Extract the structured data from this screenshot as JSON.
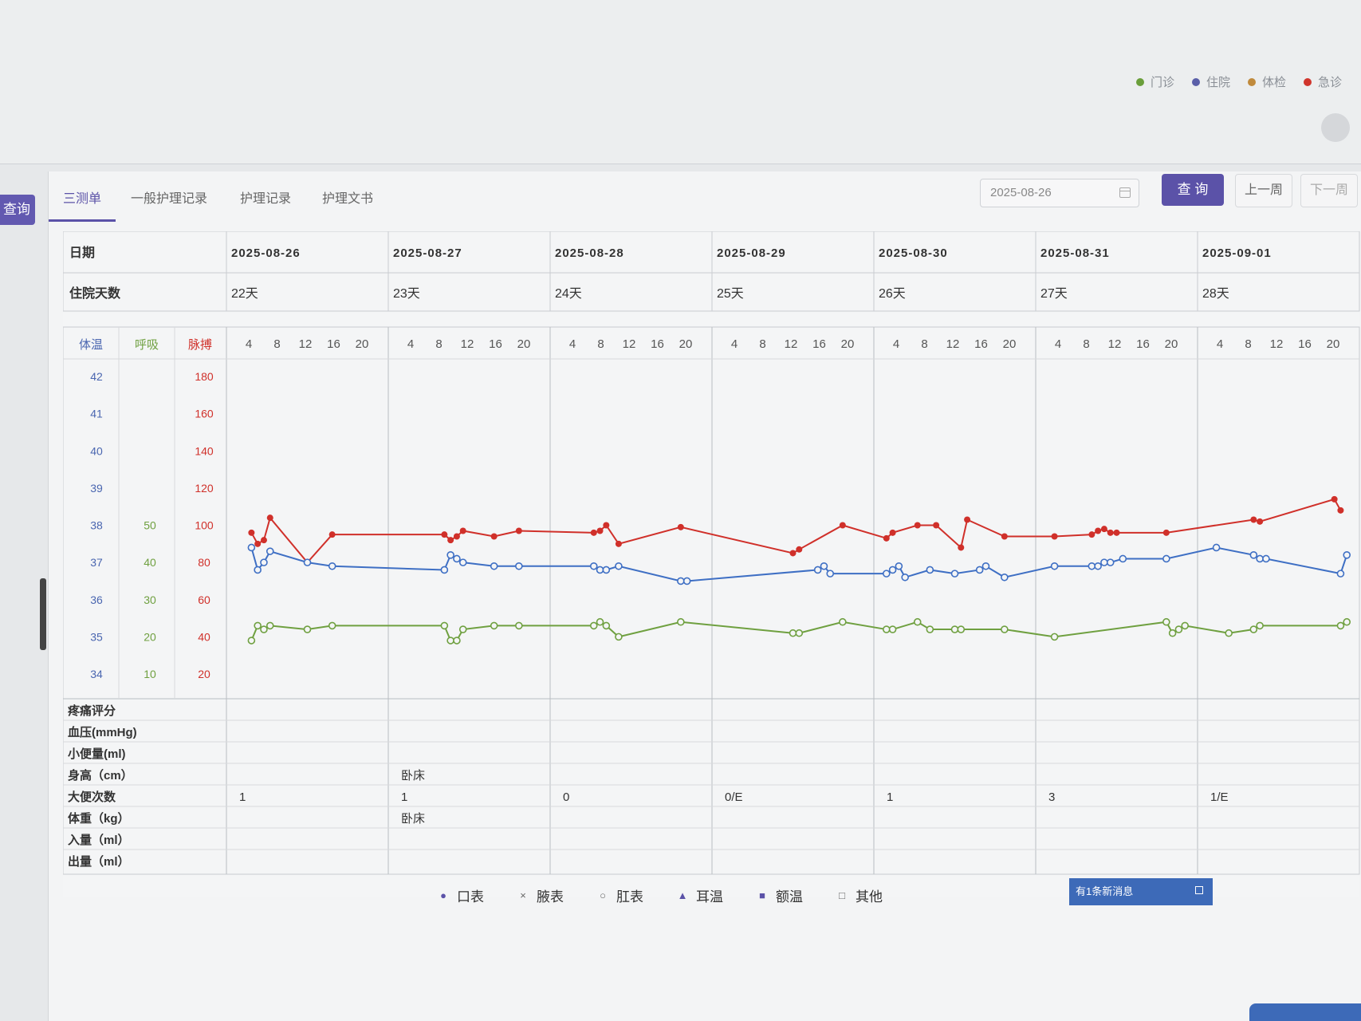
{
  "visit_legend": [
    {
      "label": "门诊",
      "color": "#6a9e3a"
    },
    {
      "label": "住院",
      "color": "#5a5fa8"
    },
    {
      "label": "体检",
      "color": "#c08a3c"
    },
    {
      "label": "急诊",
      "color": "#d0352c"
    }
  ],
  "side": {
    "query_label": "查询"
  },
  "tabs": [
    "三测单",
    "一般护理记录",
    "护理记录",
    "护理文书"
  ],
  "toolbar": {
    "date_value": "2025-08-26",
    "query_label": "查 询",
    "prev_label": "上一周",
    "next_label": "下一周"
  },
  "header": {
    "date_label": "日期",
    "days_label": "住院天数",
    "dates": [
      "2025-08-26",
      "2025-08-27",
      "2025-08-28",
      "2025-08-29",
      "2025-08-30",
      "2025-08-31",
      "2025-09-01"
    ],
    "days": [
      "22天",
      "23天",
      "24天",
      "25天",
      "26天",
      "27天",
      "28天"
    ]
  },
  "axes": {
    "temp_label": "体温",
    "resp_label": "呼吸",
    "pulse_label": "脉搏",
    "hours": [
      "4",
      "8",
      "12",
      "16",
      "20"
    ],
    "temp_ticks": [
      "42",
      "41",
      "40",
      "39",
      "38",
      "37",
      "36",
      "35",
      "34"
    ],
    "resp_ticks": [
      "",
      "",
      "",
      "",
      "50",
      "40",
      "30",
      "20",
      "10"
    ],
    "pulse_ticks": [
      "180",
      "160",
      "140",
      "120",
      "100",
      "80",
      "60",
      "40",
      "20"
    ]
  },
  "chart_data": {
    "type": "line",
    "x_unit": "date + hour",
    "temp_range": [
      34,
      42
    ],
    "pulse_range": [
      20,
      180
    ],
    "resp_range": [
      10,
      50
    ],
    "series": [
      {
        "key": "pulse",
        "color": "#d0302a",
        "marker": "filled-circle",
        "axis": "pulse",
        "points": [
          [
            "2025-08-26 3:00",
            96
          ],
          [
            "2025-08-26 4:00",
            90
          ],
          [
            "2025-08-26 5:00",
            92
          ],
          [
            "2025-08-26 6:00",
            104
          ],
          [
            "2025-08-26 12:00",
            80
          ],
          [
            "2025-08-26 16:00",
            95
          ],
          [
            "2025-08-27 8:00",
            95
          ],
          [
            "2025-08-27 9:00",
            92
          ],
          [
            "2025-08-27 10:00",
            94
          ],
          [
            "2025-08-27 11:00",
            97
          ],
          [
            "2025-08-27 16:00",
            94
          ],
          [
            "2025-08-27 20:00",
            97
          ],
          [
            "2025-08-28 6:00",
            96
          ],
          [
            "2025-08-28 7:00",
            97
          ],
          [
            "2025-08-28 8:00",
            100
          ],
          [
            "2025-08-28 10:00",
            90
          ],
          [
            "2025-08-28 20:00",
            99
          ],
          [
            "2025-08-29 12:00",
            85
          ],
          [
            "2025-08-29 13:00",
            87
          ],
          [
            "2025-08-29 20:00",
            100
          ],
          [
            "2025-08-30 1:00",
            93
          ],
          [
            "2025-08-30 2:00",
            96
          ],
          [
            "2025-08-30 6:00",
            100
          ],
          [
            "2025-08-30 9:00",
            100
          ],
          [
            "2025-08-30 13:00",
            88
          ],
          [
            "2025-08-30 14:00",
            103
          ],
          [
            "2025-08-30 20:00",
            94
          ],
          [
            "2025-08-31 2:00",
            94
          ],
          [
            "2025-08-31 8:00",
            95
          ],
          [
            "2025-08-31 9:00",
            97
          ],
          [
            "2025-08-31 10:00",
            98
          ],
          [
            "2025-08-31 11:00",
            96
          ],
          [
            "2025-08-31 12:00",
            96
          ],
          [
            "2025-08-31 20:00",
            96
          ],
          [
            "2025-09-01 8:00",
            103
          ],
          [
            "2025-09-01 9:00",
            102
          ],
          [
            "2025-09-01 21:00",
            114
          ],
          [
            "2025-09-01 22:00",
            108
          ]
        ]
      },
      {
        "key": "temperature",
        "color": "#3e6fc4",
        "marker": "open-circle",
        "axis": "temp",
        "points": [
          [
            "2025-08-26 3:00",
            37.4
          ],
          [
            "2025-08-26 4:00",
            36.8
          ],
          [
            "2025-08-26 5:00",
            37.0
          ],
          [
            "2025-08-26 6:00",
            37.3
          ],
          [
            "2025-08-26 12:00",
            37.0
          ],
          [
            "2025-08-26 16:00",
            36.9
          ],
          [
            "2025-08-27 8:00",
            36.8
          ],
          [
            "2025-08-27 9:00",
            37.2
          ],
          [
            "2025-08-27 10:00",
            37.1
          ],
          [
            "2025-08-27 11:00",
            37.0
          ],
          [
            "2025-08-27 16:00",
            36.9
          ],
          [
            "2025-08-27 20:00",
            36.9
          ],
          [
            "2025-08-28 6:00",
            36.9
          ],
          [
            "2025-08-28 7:00",
            36.8
          ],
          [
            "2025-08-28 8:00",
            36.8
          ],
          [
            "2025-08-28 10:00",
            36.9
          ],
          [
            "2025-08-28 20:00",
            36.5
          ],
          [
            "2025-08-28 21:00",
            36.5
          ],
          [
            "2025-08-29 16:00",
            36.8
          ],
          [
            "2025-08-29 17:00",
            36.9
          ],
          [
            "2025-08-29 18:00",
            36.7
          ],
          [
            "2025-08-30 1:00",
            36.7
          ],
          [
            "2025-08-30 2:00",
            36.8
          ],
          [
            "2025-08-30 3:00",
            36.9
          ],
          [
            "2025-08-30 4:00",
            36.6
          ],
          [
            "2025-08-30 8:00",
            36.8
          ],
          [
            "2025-08-30 12:00",
            36.7
          ],
          [
            "2025-08-30 16:00",
            36.8
          ],
          [
            "2025-08-30 17:00",
            36.9
          ],
          [
            "2025-08-30 20:00",
            36.6
          ],
          [
            "2025-08-31 2:00",
            36.9
          ],
          [
            "2025-08-31 8:00",
            36.9
          ],
          [
            "2025-08-31 9:00",
            36.9
          ],
          [
            "2025-08-31 10:00",
            37.0
          ],
          [
            "2025-08-31 11:00",
            37.0
          ],
          [
            "2025-08-31 13:00",
            37.1
          ],
          [
            "2025-08-31 20:00",
            37.1
          ],
          [
            "2025-09-01 2:00",
            37.4
          ],
          [
            "2025-09-01 8:00",
            37.2
          ],
          [
            "2025-09-01 9:00",
            37.1
          ],
          [
            "2025-09-01 10:00",
            37.1
          ],
          [
            "2025-09-01 22:00",
            36.7
          ],
          [
            "2025-09-01 23:00",
            37.2
          ]
        ]
      },
      {
        "key": "respiration",
        "color": "#6fa040",
        "marker": "open-circle",
        "axis": "resp",
        "points": [
          [
            "2025-08-26 3:00",
            19
          ],
          [
            "2025-08-26 4:00",
            23
          ],
          [
            "2025-08-26 5:00",
            22
          ],
          [
            "2025-08-26 6:00",
            23
          ],
          [
            "2025-08-26 12:00",
            22
          ],
          [
            "2025-08-26 16:00",
            23
          ],
          [
            "2025-08-27 8:00",
            23
          ],
          [
            "2025-08-27 9:00",
            19
          ],
          [
            "2025-08-27 10:00",
            19
          ],
          [
            "2025-08-27 11:00",
            22
          ],
          [
            "2025-08-27 16:00",
            23
          ],
          [
            "2025-08-27 20:00",
            23
          ],
          [
            "2025-08-28 6:00",
            23
          ],
          [
            "2025-08-28 7:00",
            24
          ],
          [
            "2025-08-28 8:00",
            23
          ],
          [
            "2025-08-28 10:00",
            20
          ],
          [
            "2025-08-28 20:00",
            24
          ],
          [
            "2025-08-29 12:00",
            21
          ],
          [
            "2025-08-29 13:00",
            21
          ],
          [
            "2025-08-29 20:00",
            24
          ],
          [
            "2025-08-30 1:00",
            22
          ],
          [
            "2025-08-30 2:00",
            22
          ],
          [
            "2025-08-30 6:00",
            24
          ],
          [
            "2025-08-30 8:00",
            22
          ],
          [
            "2025-08-30 12:00",
            22
          ],
          [
            "2025-08-30 13:00",
            22
          ],
          [
            "2025-08-30 20:00",
            22
          ],
          [
            "2025-08-31 2:00",
            20
          ],
          [
            "2025-08-31 20:00",
            24
          ],
          [
            "2025-08-31 21:00",
            21
          ],
          [
            "2025-08-31 22:00",
            22
          ],
          [
            "2025-08-31 23:00",
            23
          ],
          [
            "2025-09-01 4:00",
            21
          ],
          [
            "2025-09-01 8:00",
            22
          ],
          [
            "2025-09-01 9:00",
            23
          ],
          [
            "2025-09-01 22:00",
            23
          ],
          [
            "2025-09-01 23:00",
            24
          ]
        ]
      }
    ]
  },
  "bottom_rows": {
    "labels": [
      "疼痛评分",
      "血压(mmHg)",
      "小便量(ml)",
      "身高（cm）",
      "大便次数",
      "体重（kg）",
      "入量（ml）",
      "出量（ml）"
    ],
    "height": [
      "",
      "卧床",
      "",
      "",
      "",
      "",
      ""
    ],
    "stool": [
      "1",
      "1",
      "0",
      "0/E",
      "1",
      "3",
      "1/E"
    ],
    "weight": [
      "",
      "卧床",
      "",
      "",
      "",
      "",
      ""
    ]
  },
  "measure_legend": [
    {
      "label": "口表",
      "symbol": "●",
      "color": "#5b52a8"
    },
    {
      "label": "腋表",
      "symbol": "×",
      "color": "#666"
    },
    {
      "label": "肛表",
      "symbol": "○",
      "color": "#666"
    },
    {
      "label": "耳温",
      "symbol": "▲",
      "color": "#5b52a8"
    },
    {
      "label": "额温",
      "symbol": "■",
      "color": "#5b52a8"
    },
    {
      "label": "其他",
      "symbol": "□",
      "color": "#666"
    }
  ],
  "notification": {
    "text": "有1条新消息"
  }
}
